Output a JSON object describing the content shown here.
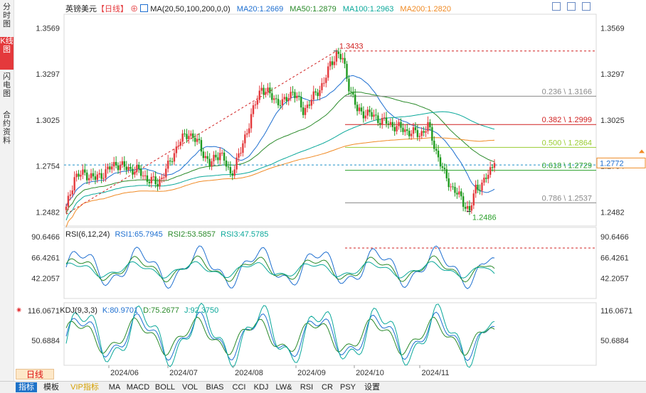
{
  "side_tabs": [
    "分时图",
    "K线图",
    "闪电图",
    "合约资料"
  ],
  "main_header": {
    "symbol": "英镑美元",
    "period_tag": "【日线】",
    "ma_label": "MA(20,50,100,200,0,0)",
    "ma20": "MA20:1.2669",
    "ma50": "MA50:1.2879",
    "ma100": "MA100:1.2963",
    "ma200": "MA200:1.2820"
  },
  "rsi_header": {
    "label": "RSI(6,12,24)",
    "rsi1": "RSI1:65.7945",
    "rsi2": "RSI2:53.5857",
    "rsi3": "RSI3:47.5785"
  },
  "kdj_header": {
    "label": "KDJ(9,3,3)",
    "k": "K:80.9701",
    "d": "D:75.2677",
    "j": "J:92.3750"
  },
  "price_axis": [
    "1.3569",
    "1.3297",
    "1.3025",
    "1.2754",
    "1.2482"
  ],
  "rsi_axis": [
    "90.6466",
    "66.4261",
    "42.2057"
  ],
  "kdj_axis": [
    "116.0671",
    "50.6884"
  ],
  "date_axis": [
    "2024/06",
    "2024/07",
    "2024/08",
    "2024/09",
    "2024/10",
    "2024/11"
  ],
  "current_price": "1.2772",
  "peak_label": "1.3433",
  "trough_label": "1.2486",
  "fib_levels": [
    {
      "label": "0.236 \\ 1.3166",
      "value": 1.3166,
      "color": "#888888"
    },
    {
      "label": "0.382 \\ 1.2999",
      "value": 1.2999,
      "color": "#d02020"
    },
    {
      "label": "0.500 \\ 1.2864",
      "value": 1.2864,
      "color": "#9acd32"
    },
    {
      "label": "0.618 \\ 1.2729",
      "value": 1.2729,
      "color": "#2ca02c"
    },
    {
      "label": "0.786 \\ 1.2537",
      "value": 1.2537,
      "color": "#888888"
    }
  ],
  "period_button": "日线",
  "bottom_tabs": [
    "指标",
    "模板",
    "VIP指标",
    "MA",
    "MACD",
    "BOLL",
    "VOL",
    "BIAS",
    "CCI",
    "KDJ",
    "LW&",
    "RSI",
    "CR",
    "PSY",
    "设置"
  ],
  "colors": {
    "up": "#e4393c",
    "down": "#1e9a1e",
    "ma20": "#1e6fd0",
    "ma50": "#2a8a2a",
    "ma100": "#0aa89a",
    "ma200": "#f08a24",
    "accent": "#1e72c8"
  },
  "chart_data": {
    "type": "candlestick",
    "symbol": "英镑美元",
    "period": "日线",
    "y_range": [
      1.24,
      1.365
    ],
    "closes_anchor": [
      [
        0,
        1.25
      ],
      [
        4,
        1.269
      ],
      [
        9,
        1.271
      ],
      [
        14,
        1.268
      ],
      [
        19,
        1.272
      ],
      [
        24,
        1.277
      ],
      [
        29,
        1.274
      ],
      [
        34,
        1.273
      ],
      [
        39,
        1.268
      ],
      [
        44,
        1.265
      ],
      [
        49,
        1.275
      ],
      [
        54,
        1.289
      ],
      [
        59,
        1.295
      ],
      [
        64,
        1.288
      ],
      [
        69,
        1.276
      ],
      [
        74,
        1.284
      ],
      [
        79,
        1.27
      ],
      [
        84,
        1.284
      ],
      [
        89,
        1.305
      ],
      [
        94,
        1.322
      ],
      [
        99,
        1.316
      ],
      [
        104,
        1.312
      ],
      [
        109,
        1.32
      ],
      [
        114,
        1.308
      ],
      [
        119,
        1.316
      ],
      [
        124,
        1.325
      ],
      [
        127,
        1.335
      ],
      [
        130,
        1.342
      ],
      [
        133,
        1.338
      ],
      [
        136,
        1.323
      ],
      [
        140,
        1.308
      ],
      [
        146,
        1.306
      ],
      [
        152,
        1.302
      ],
      [
        158,
        1.299
      ],
      [
        164,
        1.296
      ],
      [
        170,
        1.294
      ],
      [
        174,
        1.299
      ],
      [
        178,
        1.284
      ],
      [
        182,
        1.27
      ],
      [
        186,
        1.262
      ],
      [
        190,
        1.256
      ],
      [
        194,
        1.2486
      ],
      [
        197,
        1.262
      ],
      [
        200,
        1.265
      ],
      [
        203,
        1.27
      ],
      [
        206,
        1.2772
      ]
    ],
    "candle_count": 207,
    "peak": 1.3433,
    "trough": 1.2486,
    "ma_last": {
      "ma20": 1.2669,
      "ma50": 1.2879,
      "ma100": 1.2963,
      "ma200": 1.282
    },
    "fib_retracements": [
      [
        0.236,
        1.3166
      ],
      [
        0.382,
        1.2999
      ],
      [
        0.5,
        1.2864
      ],
      [
        0.618,
        1.2729
      ],
      [
        0.786,
        1.2537
      ]
    ],
    "rsi": {
      "rsi1": 65.7945,
      "rsi2": 53.5857,
      "rsi3": 47.5785,
      "y_range": [
        20,
        100
      ]
    },
    "kdj": {
      "k": 80.9701,
      "d": 75.2677,
      "j": 92.375,
      "y_range": [
        0,
        130
      ]
    },
    "x_ticks": [
      "2024/06",
      "2024/07",
      "2024/08",
      "2024/09",
      "2024/10",
      "2024/11"
    ]
  }
}
